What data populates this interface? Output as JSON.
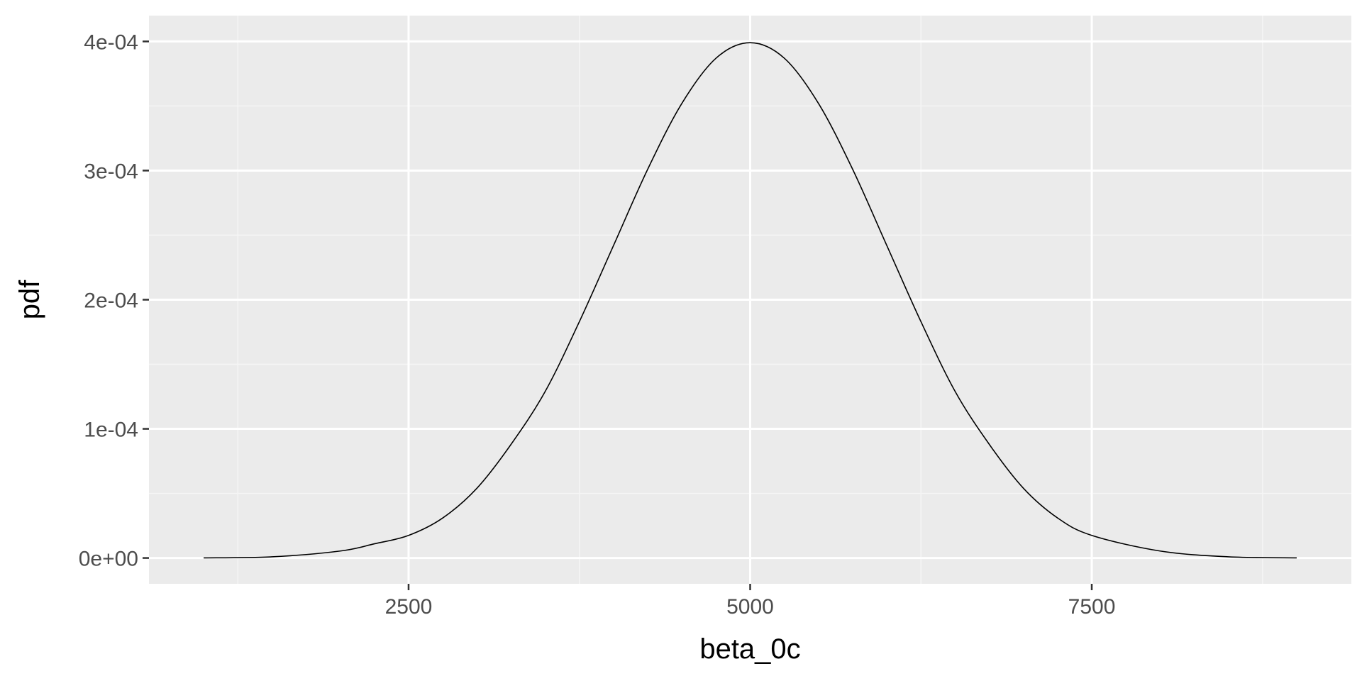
{
  "chart_data": {
    "type": "line",
    "title": "",
    "xlabel": "beta_0c",
    "ylabel": "pdf",
    "xlim": [
      600,
      9400
    ],
    "ylim": [
      -2e-05,
      0.00042
    ],
    "x_ticks": [
      2500,
      5000,
      7500
    ],
    "x_tick_labels": [
      "2500",
      "5000",
      "7500"
    ],
    "x_minor_ticks": [
      1250,
      3750,
      6250,
      8750
    ],
    "y_ticks": [
      0,
      0.0001,
      0.0002,
      0.0003,
      0.0004
    ],
    "y_tick_labels": [
      "0e+00",
      "1e-04",
      "2e-04",
      "3e-04",
      "4e-04"
    ],
    "y_minor_ticks": [
      5e-05,
      0.00015,
      0.00025,
      0.00035
    ],
    "grid": true,
    "series": [
      {
        "x": [
          1000,
          1500,
          2000,
          2250,
          2500,
          2750,
          3000,
          3250,
          3500,
          3750,
          4000,
          4250,
          4500,
          4750,
          5000,
          5250,
          5500,
          5750,
          6000,
          6250,
          6500,
          6750,
          7000,
          7250,
          7500,
          8000,
          8500,
          9000
        ],
        "values": [
          1e-07,
          9e-07,
          5.4e-06,
          1.1e-05,
          1.75e-05,
          3.1e-05,
          5.4e-05,
          8.8e-05,
          0.000129,
          0.000183,
          0.000242,
          0.000301,
          0.000352,
          0.000387,
          0.000399,
          0.000387,
          0.000352,
          0.000301,
          0.000242,
          0.000183,
          0.000129,
          8.8e-05,
          5.4e-05,
          3.1e-05,
          1.75e-05,
          5.4e-06,
          9e-07,
          1e-07
        ]
      }
    ],
    "colors": {
      "panel_background": "#ebebeb",
      "grid_major": "#ffffff",
      "grid_minor": "#f5f5f5",
      "line": "#000000",
      "tick_text": "#4d4d4d",
      "title_text": "#000000"
    }
  }
}
